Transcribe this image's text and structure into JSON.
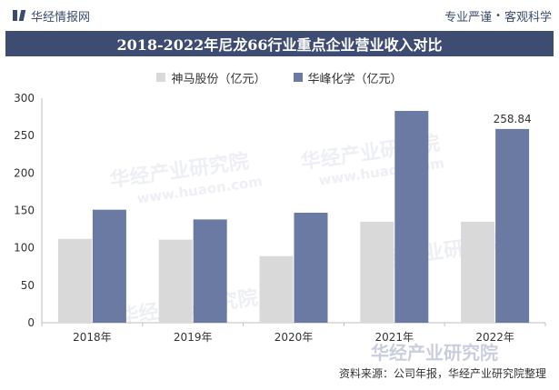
{
  "header": {
    "brand": "华经情报网",
    "tagline_left": "专业严谨",
    "tagline_sep": "•",
    "tagline_right": "客观科学"
  },
  "colors": {
    "title_bg": "#3e4c72",
    "series1": "#d9d9d9",
    "series2": "#6b7aa3"
  },
  "footer": {
    "source": "资料来源：公司年报，华经产业研究院整理"
  },
  "watermark": {
    "text": "华经产业研究院",
    "url": "www.huaon.com"
  },
  "chart_data": {
    "type": "bar",
    "title": "2018-2022年尼龙66行业重点企业营业收入对比",
    "categories": [
      "2018年",
      "2019年",
      "2020年",
      "2021年",
      "2022年"
    ],
    "series": [
      {
        "name": "神马股份（亿元）",
        "values": [
          112,
          111,
          89,
          135,
          135
        ]
      },
      {
        "name": "华峰化学（亿元）",
        "values": [
          151,
          138,
          147,
          283,
          258.84
        ]
      }
    ],
    "data_labels": [
      {
        "series": 1,
        "index": 4,
        "text": "258.84"
      }
    ],
    "ylim": [
      0,
      300
    ],
    "yticks": [
      0,
      50,
      100,
      150,
      200,
      250,
      300
    ],
    "xlabel": "",
    "ylabel": "",
    "grid": false,
    "legend_position": "top"
  }
}
